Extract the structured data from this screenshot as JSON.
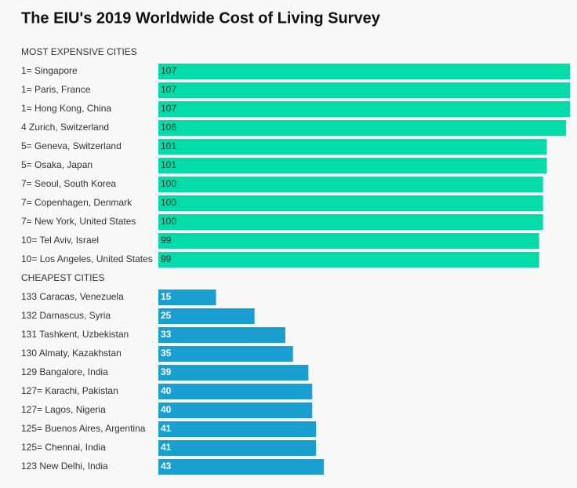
{
  "chart_data": {
    "type": "bar",
    "title": "The EIU's 2019 Worldwide Cost of Living Survey",
    "groups": [
      {
        "name": "MOST EXPENSIVE CITIES",
        "color": "#03dca9",
        "label_color": "#333333",
        "categories": [
          "1= Singapore",
          "1= Paris, France",
          "1= Hong Kong, China",
          "4 Zurich, Switzerland",
          "5= Geneva, Switzerland",
          "5= Osaka, Japan",
          "7= Seoul, South Korea",
          "7= Copenhagen, Denmark",
          "7= New York, United States",
          "10= Tel Aviv, Israel",
          "10= Los Angeles, United States"
        ],
        "values": [
          107,
          107,
          107,
          106,
          101,
          101,
          100,
          100,
          100,
          99,
          99
        ]
      },
      {
        "name": "CHEAPEST CITIES",
        "color": "#1aa0d0",
        "label_color": "#ffffff",
        "categories": [
          "133 Caracas, Venezuela",
          "132 Damascus, Syria",
          "131 Tashkent, Uzbekistan",
          "130 Almaty, Kazakhstan",
          "129 Bangalore, India",
          "127= Karachi, Pakistan",
          "127= Lagos, Nigeria",
          "125= Buenos Aires, Argentina",
          "125= Chennai, India",
          "123 New Delhi, India"
        ],
        "values": [
          15,
          25,
          33,
          35,
          39,
          40,
          40,
          41,
          41,
          43
        ]
      }
    ]
  }
}
